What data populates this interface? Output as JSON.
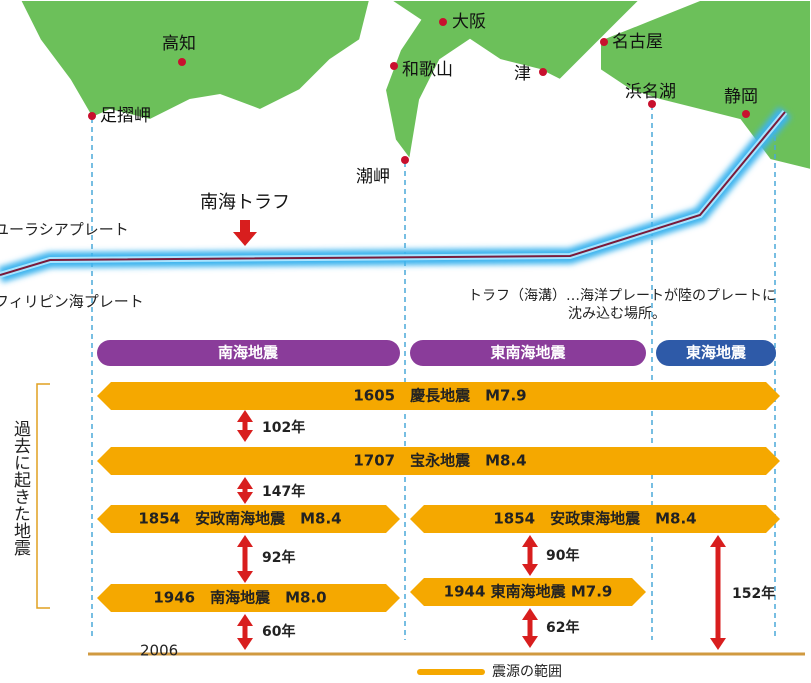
{
  "map": {
    "cities": [
      "高知",
      "足摺岬",
      "大阪",
      "和歌山",
      "潮岬",
      "津",
      "名古屋",
      "浜名湖",
      "静岡"
    ],
    "trough": "南海トラフ",
    "plates": [
      "ユーラシアプレート",
      "フィリピン海プレート"
    ],
    "note": [
      "トラフ（海溝）…海洋プレートが陸のプレートに",
      "沈み込む場所。"
    ]
  },
  "zones": [
    "南海地震",
    "東南海地震",
    "東海地震"
  ],
  "side_label": "過去に起きた地震",
  "events": [
    "1605　慶長地震　M7.9",
    "1707　宝永地震　M8.4",
    "1854　安政南海地震　M8.4",
    "1854　安政東海地震　M8.4",
    "1946　南海地震　M8.0",
    "1944 東南海地震 M7.9"
  ],
  "intervals": [
    "102年",
    "147年",
    "92年",
    "60年",
    "90年",
    "62年",
    "152年"
  ],
  "baseline": "2006",
  "legend": "震源の範囲"
}
